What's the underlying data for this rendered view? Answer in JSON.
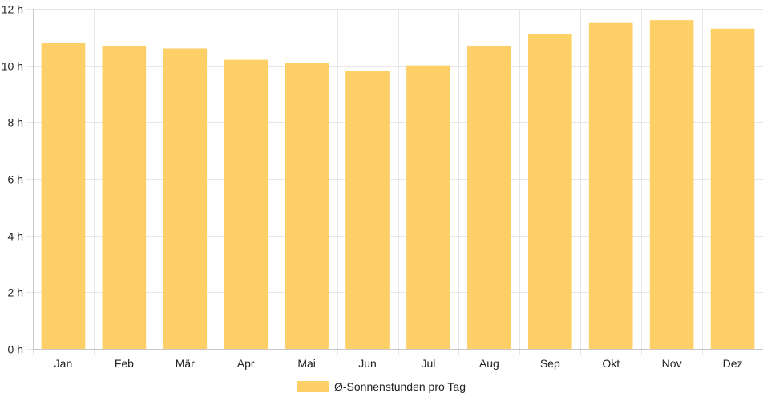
{
  "chart_data": {
    "type": "bar",
    "categories": [
      "Jan",
      "Feb",
      "Mär",
      "Apr",
      "Mai",
      "Jun",
      "Jul",
      "Aug",
      "Sep",
      "Okt",
      "Nov",
      "Dez"
    ],
    "series": [
      {
        "name": "Ø-Sonnenstunden pro Tag",
        "values": [
          10.8,
          10.7,
          10.6,
          10.2,
          10.1,
          9.8,
          10.0,
          10.7,
          11.1,
          11.5,
          11.6,
          11.3
        ]
      }
    ],
    "ylim": [
      0,
      12
    ],
    "yticks": [
      0,
      2,
      4,
      6,
      8,
      10,
      12
    ],
    "ytick_labels": [
      "0 h",
      "2 h",
      "4 h",
      "6 h",
      "8 h",
      "10 h",
      "12 h"
    ],
    "grid": true,
    "legend_position": "bottom",
    "colors": {
      "bar": "#fdd067",
      "grid": "#e6e6e6",
      "axis": "#c8c8c8",
      "text": "#222222"
    }
  }
}
